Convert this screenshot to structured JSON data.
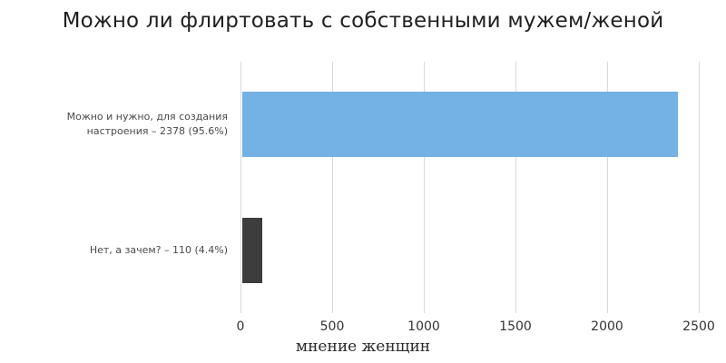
{
  "title": "Можно ли флиртовать с собственными мужем/женой",
  "chart_data": {
    "type": "bar",
    "orientation": "horizontal",
    "categories": [
      "Можно и нужно, для создания настроения – 2378 (95.6%)",
      "Нет, а зачем? – 110 (4.4%)"
    ],
    "values": [
      2378,
      110
    ],
    "percents": [
      95.6,
      4.4
    ],
    "bar_colors": [
      "#74b1e4",
      "#3d3d3d"
    ],
    "xlabel": "мнение женщин",
    "ylabel": "",
    "x_ticks": [
      0,
      500,
      1000,
      1500,
      2000,
      2500
    ],
    "xlim": [
      0,
      2500
    ],
    "grid": true,
    "gridline_color": "#d9d9d9",
    "legend": "none"
  }
}
